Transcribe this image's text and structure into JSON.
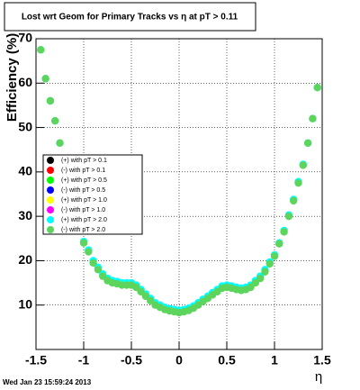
{
  "chart_data": {
    "type": "scatter",
    "title": "Lost wrt Geom for Primary Tracks vs η at pT > 0.11",
    "x_label": "η",
    "y_label": "Efficiency (%)",
    "timestamp": "Wed Jan 23 15:59:24 2013",
    "xlim": [
      -1.5,
      1.5
    ],
    "ylim": [
      0,
      70
    ],
    "xticks": [
      -1.5,
      -1,
      -0.5,
      0,
      0.5,
      1,
      1.5
    ],
    "yticks": [
      10,
      20,
      30,
      40,
      50,
      60,
      70
    ],
    "grid": true,
    "x": [
      -1.45,
      -1.4,
      -1.35,
      -1.3,
      -1.25,
      -1.0,
      -0.95,
      -0.9,
      -0.85,
      -0.8,
      -0.75,
      -0.7,
      -0.65,
      -0.6,
      -0.55,
      -0.5,
      -0.45,
      -0.4,
      -0.35,
      -0.3,
      -0.25,
      -0.2,
      -0.15,
      -0.1,
      -0.05,
      0,
      0.05,
      0.1,
      0.15,
      0.2,
      0.25,
      0.3,
      0.35,
      0.4,
      0.45,
      0.5,
      0.55,
      0.6,
      0.65,
      0.7,
      0.75,
      0.8,
      0.85,
      0.9,
      0.95,
      1.0,
      1.05,
      1.1,
      1.15,
      1.2,
      1.25,
      1.3,
      1.35,
      1.4,
      1.45
    ],
    "series": [
      {
        "name": "(+) with pT > 0.1",
        "color": "#000000"
      },
      {
        "name": "(-) with pT > 0.1",
        "color": "#ff0000"
      },
      {
        "name": "(+) with pT > 0.5",
        "color": "#00ff00"
      },
      {
        "name": "(-) with pT > 0.5",
        "color": "#0000ff"
      },
      {
        "name": "(+) with pT > 1.0",
        "color": "#ffff00"
      },
      {
        "name": "(-) with pT > 1.0",
        "color": "#ff00ff"
      },
      {
        "name": "(+) with pT > 2.0",
        "color": "#00ffff",
        "values": [
          67.5,
          61,
          56,
          51.5,
          46.5,
          24.3,
          22.4,
          20,
          18.5,
          17,
          16,
          15.5,
          15.3,
          15,
          15,
          15,
          14.5,
          13.5,
          12.5,
          11.5,
          10.5,
          10,
          9.5,
          9.2,
          9,
          8.8,
          9,
          9.3,
          9.8,
          10.5,
          11.3,
          12,
          12.8,
          13.5,
          14.3,
          14.5,
          14.3,
          14,
          13.8,
          14,
          14.5,
          15.5,
          16.5,
          18,
          19.7,
          21.3,
          24,
          26.8,
          30.3,
          33.8,
          37.8,
          41.7,
          46.5,
          52,
          59
        ]
      },
      {
        "name": "(-) with pT > 2.0",
        "color": "#5dd55d",
        "values": [
          67.5,
          61,
          56,
          51.5,
          46.5,
          24,
          22,
          19.5,
          18,
          16.5,
          15.5,
          15,
          14.8,
          14.5,
          14.5,
          14.5,
          14,
          13,
          12,
          11,
          10,
          9.5,
          9,
          8.7,
          8.5,
          8.3,
          8.5,
          8.8,
          9.3,
          10,
          10.8,
          11.5,
          12.3,
          13,
          13.8,
          14,
          13.8,
          13.5,
          13.3,
          13.5,
          14,
          15,
          16,
          17.5,
          19.3,
          21,
          23.8,
          26.5,
          30,
          33.5,
          37.5,
          41.5,
          46.5,
          52,
          59
        ]
      }
    ]
  }
}
